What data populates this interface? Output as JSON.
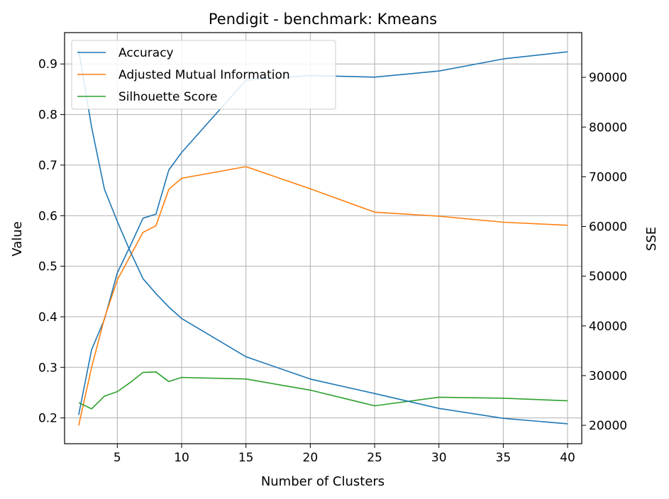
{
  "chart_data": {
    "type": "line",
    "title": "Pendigit - benchmark: Kmeans",
    "xlabel": "Number of Clusters",
    "ylabel": "Value",
    "y2label": "SSE",
    "xlim": [
      0.9,
      41.1
    ],
    "ylim": [
      0.149,
      0.962
    ],
    "y2lim": [
      16300,
      99000
    ],
    "x_ticks": [
      "5",
      "10",
      "15",
      "20",
      "25",
      "30",
      "35",
      "40"
    ],
    "y_ticks": [
      "0.2",
      "0.3",
      "0.4",
      "0.5",
      "0.6",
      "0.7",
      "0.8",
      "0.9"
    ],
    "y2_ticks": [
      "20000",
      "30000",
      "40000",
      "50000",
      "60000",
      "70000",
      "80000",
      "90000"
    ],
    "grid": true,
    "legend_position": "top-left",
    "x": [
      2,
      3,
      4,
      5,
      6,
      7,
      8,
      9,
      10,
      15,
      20,
      25,
      30,
      35,
      40
    ],
    "series": [
      {
        "name": "Accuracy",
        "axis": "left",
        "color": "#1f77b4",
        "values": [
          0.206,
          0.335,
          0.395,
          0.487,
          0.54,
          0.595,
          0.603,
          0.69,
          0.725,
          0.868,
          0.877,
          0.874,
          0.886,
          0.91,
          0.924
        ]
      },
      {
        "name": "Adjusted Mutual Information",
        "axis": "left",
        "color": "#ff7f0e",
        "values": [
          0.185,
          0.3,
          0.397,
          0.473,
          0.52,
          0.567,
          0.58,
          0.652,
          0.674,
          0.697,
          0.653,
          0.607,
          0.599,
          0.587,
          0.581
        ]
      },
      {
        "name": "Silhouette Score",
        "axis": "left",
        "color": "#2ca02c",
        "values": [
          0.23,
          0.218,
          0.243,
          0.252,
          0.27,
          0.29,
          0.291,
          0.272,
          0.28,
          0.277,
          0.255,
          0.224,
          0.241,
          0.239,
          0.234
        ]
      },
      {
        "name": "SSE",
        "axis": "right",
        "color": "#1f77b4",
        "values": [
          95500,
          80000,
          67500,
          61000,
          55000,
          49500,
          46500,
          43800,
          41500,
          33800,
          29300,
          26400,
          23400,
          21400,
          20300
        ]
      }
    ]
  }
}
